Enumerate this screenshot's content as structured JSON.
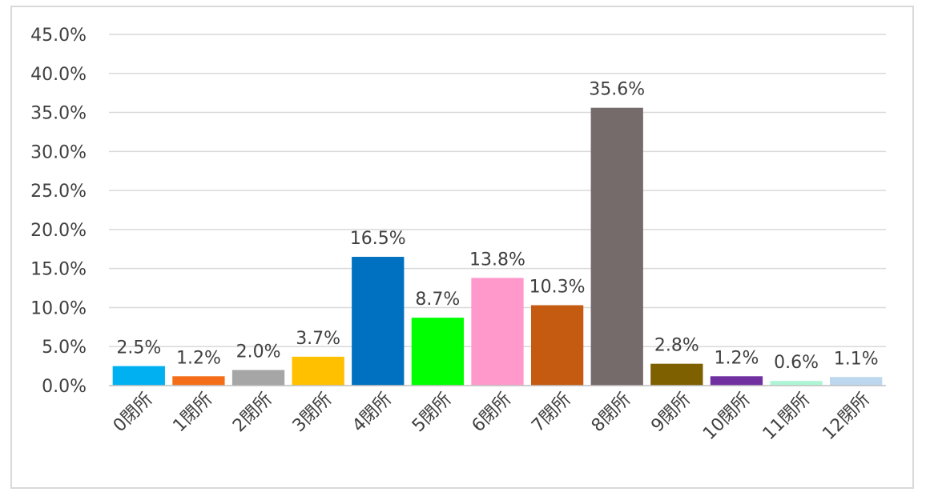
{
  "chart_data": {
    "type": "bar",
    "title": "",
    "xlabel": "",
    "ylabel": "",
    "categories": [
      "0閉所",
      "1閉所",
      "2閉所",
      "3閉所",
      "4閉所",
      "5閉所",
      "6閉所",
      "7閉所",
      "8閉所",
      "9閉所",
      "10閉所",
      "11閉所",
      "12閉所"
    ],
    "values": [
      2.5,
      1.2,
      2.0,
      3.7,
      16.5,
      8.7,
      13.8,
      10.3,
      35.6,
      2.8,
      1.2,
      0.6,
      1.1
    ],
    "data_labels": [
      "2.5%",
      "1.2%",
      "2.0%",
      "3.7%",
      "16.5%",
      "8.7%",
      "13.8%",
      "10.3%",
      "35.6%",
      "2.8%",
      "1.2%",
      "0.6%",
      "1.1%"
    ],
    "colors": [
      "#00b0f0",
      "#f46e1a",
      "#a6a6a6",
      "#ffc000",
      "#0070c0",
      "#00ff00",
      "#ff99cc",
      "#c55a11",
      "#766b6b",
      "#7f6000",
      "#7030a0",
      "#aef5d6",
      "#bdd7ee"
    ],
    "ylim": [
      0,
      45
    ],
    "yticks": [
      0,
      5,
      10,
      15,
      20,
      25,
      30,
      35,
      40,
      45
    ],
    "ytick_labels": [
      "0.0%",
      "5.0%",
      "10.0%",
      "15.0%",
      "20.0%",
      "25.0%",
      "30.0%",
      "35.0%",
      "40.0%",
      "45.0%"
    ],
    "grid": true,
    "legend": "none"
  }
}
